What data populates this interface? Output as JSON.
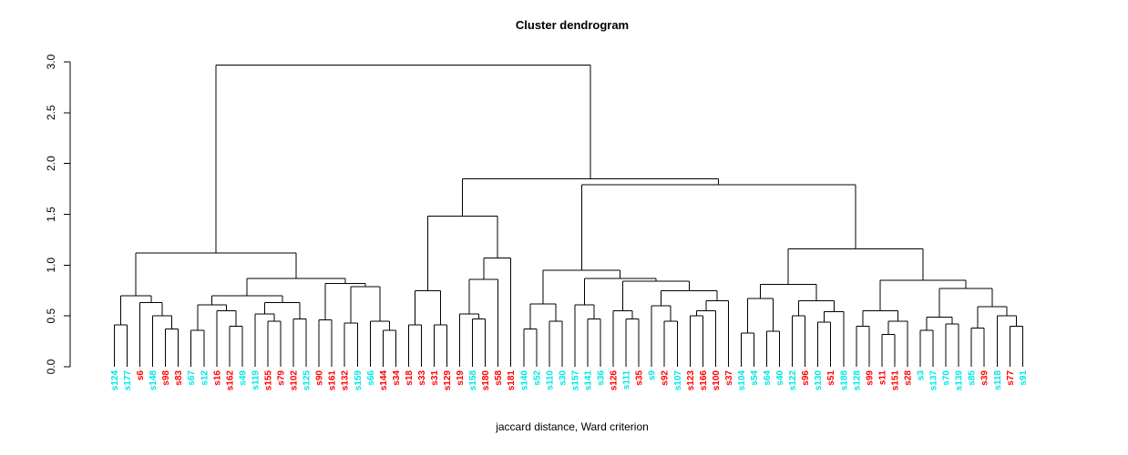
{
  "title": "Cluster dendrogram",
  "xlabel": "jaccard distance, Ward criterion",
  "palette": {
    "cyan": "#00e6e6",
    "red": "#ff0000",
    "line": "#000000"
  },
  "chart_data": {
    "type": "dendrogram",
    "ylim": [
      0,
      3
    ],
    "yticks": [
      "0.0",
      "0.5",
      "1.0",
      "1.5",
      "2.0",
      "2.5",
      "3.0"
    ],
    "grid": false,
    "leaves": [
      {
        "label": "s124",
        "color": "cyan"
      },
      {
        "label": "s177",
        "color": "cyan"
      },
      {
        "label": "s6",
        "color": "red"
      },
      {
        "label": "s148",
        "color": "cyan"
      },
      {
        "label": "s98",
        "color": "red"
      },
      {
        "label": "s83",
        "color": "red"
      },
      {
        "label": "s67",
        "color": "cyan"
      },
      {
        "label": "s12",
        "color": "cyan"
      },
      {
        "label": "s16",
        "color": "red"
      },
      {
        "label": "s162",
        "color": "red"
      },
      {
        "label": "s49",
        "color": "cyan"
      },
      {
        "label": "s119",
        "color": "cyan"
      },
      {
        "label": "s155",
        "color": "red"
      },
      {
        "label": "s79",
        "color": "red"
      },
      {
        "label": "s102",
        "color": "red"
      },
      {
        "label": "s125",
        "color": "cyan"
      },
      {
        "label": "s90",
        "color": "red"
      },
      {
        "label": "s161",
        "color": "red"
      },
      {
        "label": "s132",
        "color": "red"
      },
      {
        "label": "s159",
        "color": "cyan"
      },
      {
        "label": "s66",
        "color": "cyan"
      },
      {
        "label": "s144",
        "color": "red"
      },
      {
        "label": "s34",
        "color": "red"
      },
      {
        "label": "s18",
        "color": "red"
      },
      {
        "label": "s33",
        "color": "red"
      },
      {
        "label": "s31",
        "color": "red"
      },
      {
        "label": "s129",
        "color": "red"
      },
      {
        "label": "s19",
        "color": "red"
      },
      {
        "label": "s158",
        "color": "cyan"
      },
      {
        "label": "s180",
        "color": "red"
      },
      {
        "label": "s58",
        "color": "red"
      },
      {
        "label": "s181",
        "color": "red"
      },
      {
        "label": "s140",
        "color": "cyan"
      },
      {
        "label": "s52",
        "color": "cyan"
      },
      {
        "label": "s110",
        "color": "cyan"
      },
      {
        "label": "s30",
        "color": "cyan"
      },
      {
        "label": "s157",
        "color": "cyan"
      },
      {
        "label": "s141",
        "color": "cyan"
      },
      {
        "label": "s36",
        "color": "cyan"
      },
      {
        "label": "s126",
        "color": "red"
      },
      {
        "label": "s111",
        "color": "cyan"
      },
      {
        "label": "s35",
        "color": "red"
      },
      {
        "label": "s9",
        "color": "cyan"
      },
      {
        "label": "s92",
        "color": "red"
      },
      {
        "label": "s107",
        "color": "cyan"
      },
      {
        "label": "s123",
        "color": "red"
      },
      {
        "label": "s166",
        "color": "red"
      },
      {
        "label": "s100",
        "color": "red"
      },
      {
        "label": "s37",
        "color": "red"
      },
      {
        "label": "s104",
        "color": "cyan"
      },
      {
        "label": "s54",
        "color": "cyan"
      },
      {
        "label": "s64",
        "color": "cyan"
      },
      {
        "label": "s40",
        "color": "cyan"
      },
      {
        "label": "s122",
        "color": "cyan"
      },
      {
        "label": "s96",
        "color": "red"
      },
      {
        "label": "s130",
        "color": "cyan"
      },
      {
        "label": "s51",
        "color": "red"
      },
      {
        "label": "s188",
        "color": "cyan"
      },
      {
        "label": "s128",
        "color": "cyan"
      },
      {
        "label": "s99",
        "color": "red"
      },
      {
        "label": "s11",
        "color": "red"
      },
      {
        "label": "s151",
        "color": "red"
      },
      {
        "label": "s28",
        "color": "red"
      },
      {
        "label": "s3",
        "color": "cyan"
      },
      {
        "label": "s137",
        "color": "cyan"
      },
      {
        "label": "s70",
        "color": "cyan"
      },
      {
        "label": "s139",
        "color": "cyan"
      },
      {
        "label": "s85",
        "color": "cyan"
      },
      {
        "label": "s39",
        "color": "red"
      },
      {
        "label": "s118",
        "color": "cyan"
      },
      {
        "label": "s77",
        "color": "red"
      },
      {
        "label": "s91",
        "color": "cyan"
      }
    ],
    "tree": {
      "h": 2.97,
      "c": [
        {
          "h": 1.12,
          "c": [
            {
              "h": 0.7,
              "c": [
                {
                  "h": 0.41,
                  "c": [
                    "s124",
                    "s177"
                  ]
                },
                {
                  "h": 0.63,
                  "c": [
                    "s6",
                    {
                      "h": 0.5,
                      "c": [
                        "s148",
                        {
                          "h": 0.37,
                          "c": [
                            "s98",
                            "s83"
                          ]
                        }
                      ]
                    }
                  ]
                }
              ]
            },
            {
              "h": 0.87,
              "c": [
                {
                  "h": 0.7,
                  "c": [
                    {
                      "h": 0.61,
                      "c": [
                        {
                          "h": 0.36,
                          "c": [
                            "s67",
                            "s12"
                          ]
                        },
                        {
                          "h": 0.55,
                          "c": [
                            "s16",
                            {
                              "h": 0.4,
                              "c": [
                                "s162",
                                "s49"
                              ]
                            }
                          ]
                        }
                      ]
                    },
                    {
                      "h": 0.63,
                      "c": [
                        {
                          "h": 0.52,
                          "c": [
                            "s119",
                            {
                              "h": 0.45,
                              "c": [
                                "s155",
                                "s79"
                              ]
                            }
                          ]
                        },
                        {
                          "h": 0.47,
                          "c": [
                            "s102",
                            "s125"
                          ]
                        }
                      ]
                    }
                  ]
                },
                {
                  "h": 0.82,
                  "c": [
                    {
                      "h": 0.46,
                      "c": [
                        "s90",
                        "s161"
                      ]
                    },
                    {
                      "h": 0.79,
                      "c": [
                        {
                          "h": 0.43,
                          "c": [
                            "s132",
                            "s159"
                          ]
                        },
                        {
                          "h": 0.45,
                          "c": [
                            "s66",
                            {
                              "h": 0.36,
                              "c": [
                                "s144",
                                "s34"
                              ]
                            }
                          ]
                        }
                      ]
                    }
                  ]
                }
              ]
            }
          ]
        },
        {
          "h": 1.85,
          "c": [
            {
              "h": 1.48,
              "c": [
                {
                  "h": 0.75,
                  "c": [
                    {
                      "h": 0.41,
                      "c": [
                        "s18",
                        "s33"
                      ]
                    },
                    {
                      "h": 0.41,
                      "c": [
                        "s31",
                        "s129"
                      ]
                    }
                  ]
                },
                {
                  "h": 1.07,
                  "c": [
                    {
                      "h": 0.86,
                      "c": [
                        {
                          "h": 0.52,
                          "c": [
                            "s19",
                            {
                              "h": 0.47,
                              "c": [
                                "s158",
                                "s180"
                              ]
                            }
                          ]
                        },
                        "s58"
                      ]
                    },
                    "s181"
                  ]
                }
              ]
            },
            {
              "h": 1.79,
              "c": [
                {
                  "h": 0.95,
                  "c": [
                    {
                      "h": 0.62,
                      "c": [
                        {
                          "h": 0.37,
                          "c": [
                            "s140",
                            "s52"
                          ]
                        },
                        {
                          "h": 0.45,
                          "c": [
                            "s110",
                            "s30"
                          ]
                        }
                      ]
                    },
                    {
                      "h": 0.87,
                      "c": [
                        {
                          "h": 0.61,
                          "c": [
                            "s157",
                            {
                              "h": 0.47,
                              "c": [
                                "s141",
                                "s36"
                              ]
                            }
                          ]
                        },
                        {
                          "h": 0.84,
                          "c": [
                            {
                              "h": 0.55,
                              "c": [
                                "s126",
                                {
                                  "h": 0.47,
                                  "c": [
                                    "s111",
                                    "s35"
                                  ]
                                }
                              ]
                            },
                            {
                              "h": 0.75,
                              "c": [
                                {
                                  "h": 0.6,
                                  "c": [
                                    "s9",
                                    {
                                      "h": 0.45,
                                      "c": [
                                        "s92",
                                        "s107"
                                      ]
                                    }
                                  ]
                                },
                                {
                                  "h": 0.65,
                                  "c": [
                                    {
                                      "h": 0.55,
                                      "c": [
                                        {
                                          "h": 0.5,
                                          "c": [
                                            "s123",
                                            "s166"
                                          ]
                                        },
                                        "s100"
                                      ]
                                    },
                                    "s37"
                                  ]
                                }
                              ]
                            }
                          ]
                        }
                      ]
                    }
                  ]
                },
                {
                  "h": 1.16,
                  "c": [
                    {
                      "h": 0.81,
                      "c": [
                        {
                          "h": 0.67,
                          "c": [
                            {
                              "h": 0.33,
                              "c": [
                                "s104",
                                "s54"
                              ]
                            },
                            {
                              "h": 0.35,
                              "c": [
                                "s64",
                                "s40"
                              ]
                            }
                          ]
                        },
                        {
                          "h": 0.65,
                          "c": [
                            {
                              "h": 0.5,
                              "c": [
                                "s122",
                                "s96"
                              ]
                            },
                            {
                              "h": 0.54,
                              "c": [
                                {
                                  "h": 0.44,
                                  "c": [
                                    "s130",
                                    "s51"
                                  ]
                                },
                                "s188"
                              ]
                            }
                          ]
                        }
                      ]
                    },
                    {
                      "h": 0.85,
                      "c": [
                        {
                          "h": 0.55,
                          "c": [
                            {
                              "h": 0.4,
                              "c": [
                                "s128",
                                "s99"
                              ]
                            },
                            {
                              "h": 0.45,
                              "c": [
                                {
                                  "h": 0.32,
                                  "c": [
                                    "s11",
                                    "s151"
                                  ]
                                },
                                "s28"
                              ]
                            }
                          ]
                        },
                        {
                          "h": 0.77,
                          "c": [
                            {
                              "h": 0.49,
                              "c": [
                                {
                                  "h": 0.36,
                                  "c": [
                                    "s3",
                                    "s137"
                                  ]
                                },
                                {
                                  "h": 0.42,
                                  "c": [
                                    "s70",
                                    "s139"
                                  ]
                                }
                              ]
                            },
                            {
                              "h": 0.59,
                              "c": [
                                {
                                  "h": 0.38,
                                  "c": [
                                    "s85",
                                    "s39"
                                  ]
                                },
                                {
                                  "h": 0.5,
                                  "c": [
                                    "s118",
                                    {
                                      "h": 0.4,
                                      "c": [
                                        "s77",
                                        "s91"
                                      ]
                                    }
                                  ]
                                }
                              ]
                            }
                          ]
                        }
                      ]
                    }
                  ]
                }
              ]
            }
          ]
        }
      ]
    }
  }
}
